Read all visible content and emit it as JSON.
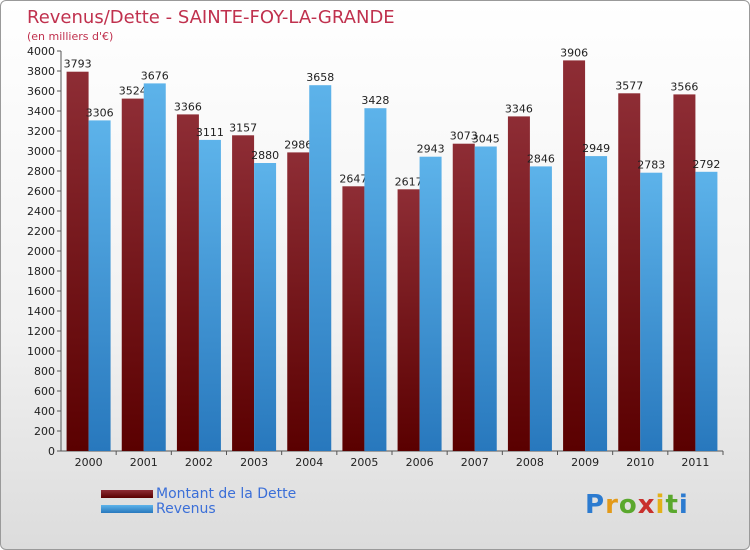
{
  "chart_data": {
    "type": "bar",
    "title": "Revenus/Dette - SAINTE-FOY-LA-GRANDE",
    "subtitle": "(en milliers d'€)",
    "categories": [
      "2000",
      "2001",
      "2002",
      "2003",
      "2004",
      "2005",
      "2006",
      "2007",
      "2008",
      "2009",
      "2010",
      "2011"
    ],
    "series": [
      {
        "name": "Montant de la Dette",
        "values": [
          3793,
          3524,
          3366,
          3157,
          2986,
          2647,
          2617,
          3073,
          3346,
          3906,
          3577,
          3566
        ],
        "color": "#8b1a22"
      },
      {
        "name": "Revenus",
        "values": [
          3306,
          3676,
          3111,
          2880,
          3658,
          3428,
          2943,
          3045,
          2846,
          2949,
          2783,
          2792
        ],
        "color": "#3d9be0"
      }
    ],
    "ylim": [
      0,
      4000
    ],
    "ytick_step": 200,
    "grid": false,
    "legend_position": "bottom-left"
  },
  "logo": {
    "letters": [
      "P",
      "r",
      "o",
      "x",
      "i",
      "t",
      "i"
    ],
    "colors": [
      "#2c7bd0",
      "#e39a19",
      "#5aa82d",
      "#c9302c",
      "#e3b119",
      "#5aa82d",
      "#2c7bd0"
    ]
  }
}
